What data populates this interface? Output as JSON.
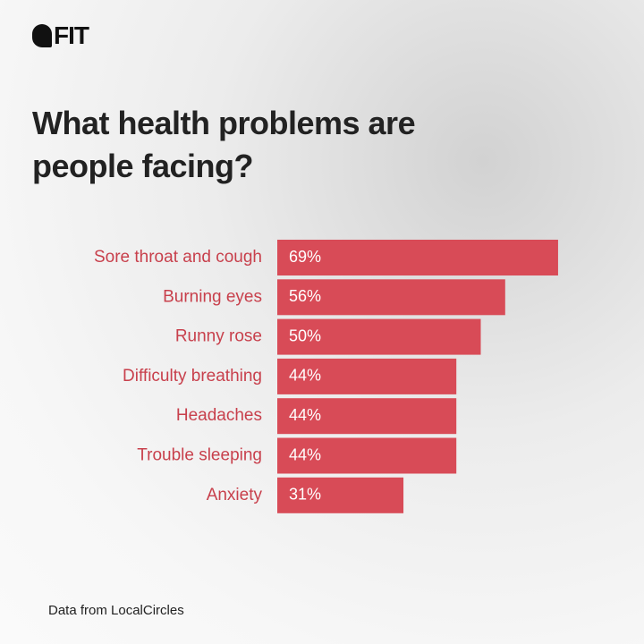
{
  "brand": "FIT",
  "chart_data": {
    "type": "bar",
    "orientation": "horizontal",
    "title": "What health problems are people facing?",
    "categories": [
      "Sore throat and cough",
      "Burning eyes",
      "Runny rose",
      "Difficulty breathing",
      "Headaches",
      "Trouble sleeping",
      "Anxiety"
    ],
    "values": [
      69,
      56,
      50,
      44,
      44,
      44,
      31
    ],
    "value_labels": [
      "69%",
      "56%",
      "50%",
      "44%",
      "44%",
      "44%",
      "31%"
    ],
    "color": "#d84b57",
    "source": "Data from LocalCircles"
  }
}
